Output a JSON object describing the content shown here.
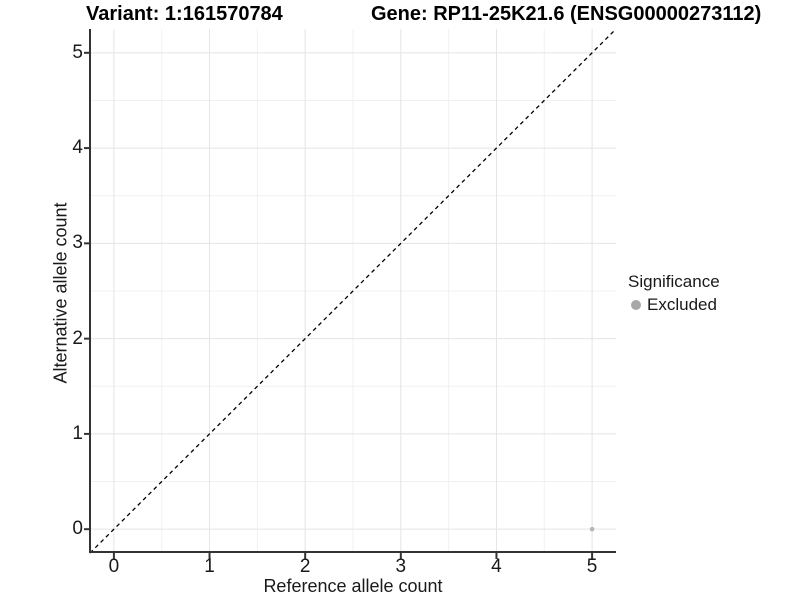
{
  "titles": {
    "variant": "Variant: 1:161570784",
    "gene": "Gene: RP11-25K21.6 (ENSG00000273112)"
  },
  "legend": {
    "title": "Significance",
    "position": "right",
    "items": [
      {
        "label": "Excluded",
        "color": "#a8a8a8",
        "marker": "circle"
      }
    ]
  },
  "chart_data": {
    "type": "scatter",
    "title_left": "Variant: 1:161570784",
    "title_right": "Gene: RP11-25K21.6 (ENSG00000273112)",
    "xlabel": "Reference allele count",
    "ylabel": "Alternative allele count",
    "xlim": [
      -0.25,
      5.25
    ],
    "ylim": [
      -0.25,
      5.25
    ],
    "x_ticks": [
      0,
      1,
      2,
      3,
      4,
      5
    ],
    "y_ticks": [
      0,
      1,
      2,
      3,
      4,
      5
    ],
    "minor_ticks": [
      0.5,
      1.5,
      2.5,
      3.5,
      4.5
    ],
    "grid": "major+minor",
    "background": "#ffffff",
    "series": [
      {
        "name": "Excluded",
        "color": "#b5b5b5",
        "points": [
          {
            "x": 5,
            "y": 0
          }
        ]
      }
    ],
    "reference_line": {
      "kind": "identity y=x",
      "style": "dashed",
      "color": "#000000"
    }
  },
  "colors": {
    "grid_major": "#e4e4e4",
    "grid_minor": "#f1f1f1",
    "axis_line": "#333333",
    "tick_text": "#1a1a1a",
    "point": "#b5b5b5",
    "legend_dot": "#a8a8a8",
    "dashed_line": "#000000"
  }
}
